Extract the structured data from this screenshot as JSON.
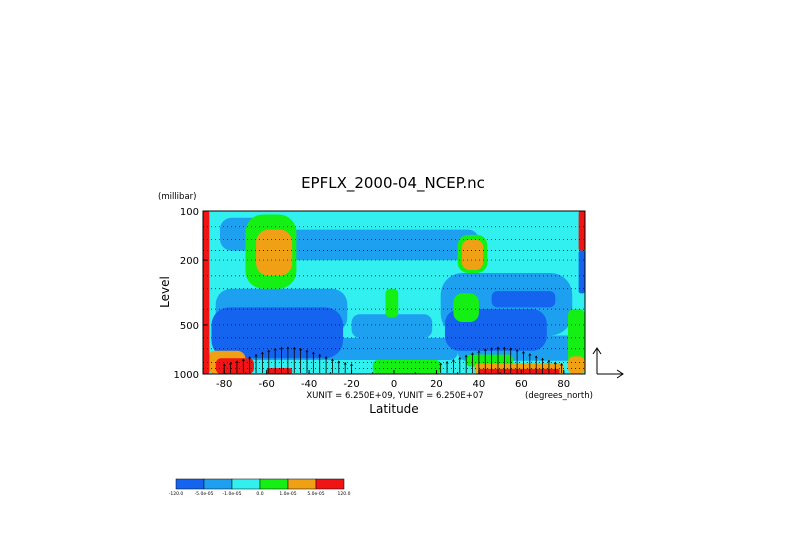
{
  "chart_data": {
    "type": "heatmap",
    "title": "EPFLX_2000-04_NCEP.nc",
    "xlabel": "Latitude",
    "ylabel": "Level",
    "x_units": "(degrees_north)",
    "y_units": "(millibar)",
    "unit_note": "XUNIT = 6.250E+09, YUNIT = 6.250E+07",
    "xlim": [
      -90,
      90
    ],
    "ylim": [
      1000,
      100
    ],
    "y_scale": "log",
    "x_ticks": [
      "-80",
      "-60",
      "-40",
      "-20",
      "0",
      "20",
      "40",
      "60",
      "80"
    ],
    "x_tick_values": [
      -80,
      -60,
      -40,
      -20,
      0,
      20,
      40,
      60,
      80
    ],
    "y_ticks": [
      "100",
      "200",
      "500",
      "1000"
    ],
    "y_tick_values": [
      100,
      200,
      500,
      1000
    ],
    "grid": "dotted horizontal lines",
    "colorbar": {
      "placement": "bottom-left",
      "colors": [
        "#1464f0",
        "#1ea0f0",
        "#32f0f0",
        "#14f014",
        "#f0a014",
        "#f01414"
      ],
      "labels": [
        "-120.0",
        "-5.0e-05",
        "-1.0e-05",
        "0.0",
        "1.0e-05",
        "5.0e-05",
        "120.0"
      ]
    },
    "regions": [
      {
        "class": 2,
        "x": [
          -90,
          90
        ],
        "y": [
          100,
          1000
        ]
      },
      {
        "class": 1,
        "x": [
          -82,
          -50
        ],
        "y": [
          110,
          175
        ]
      },
      {
        "class": 1,
        "x": [
          -52,
          40
        ],
        "y": [
          130,
          200
        ]
      },
      {
        "class": 1,
        "x": [
          -84,
          -22
        ],
        "y": [
          300,
          560
        ]
      },
      {
        "class": 1,
        "x": [
          -20,
          18
        ],
        "y": [
          430,
          600
        ]
      },
      {
        "class": 1,
        "x": [
          22,
          84
        ],
        "y": [
          240,
          580
        ]
      },
      {
        "class": 1,
        "x": [
          -82,
          30
        ],
        "y": [
          600,
          820
        ]
      },
      {
        "class": 1,
        "x": [
          30,
          88
        ],
        "y": [
          580,
          830
        ]
      },
      {
        "class": 0,
        "x": [
          -86,
          -24
        ],
        "y": [
          390,
          800
        ]
      },
      {
        "class": 0,
        "x": [
          24,
          72
        ],
        "y": [
          400,
          720
        ]
      },
      {
        "class": 0,
        "x": [
          46,
          76
        ],
        "y": [
          310,
          390
        ]
      },
      {
        "class": 3,
        "x": [
          -70,
          -46
        ],
        "y": [
          105,
          300
        ]
      },
      {
        "class": 3,
        "x": [
          -4,
          2
        ],
        "y": [
          300,
          450
        ]
      },
      {
        "class": 3,
        "x": [
          28,
          40
        ],
        "y": [
          320,
          480
        ]
      },
      {
        "class": 3,
        "x": [
          30,
          44
        ],
        "y": [
          140,
          240
        ]
      },
      {
        "class": 3,
        "x": [
          -10,
          22
        ],
        "y": [
          820,
          1000
        ]
      },
      {
        "class": 3,
        "x": [
          34,
          56
        ],
        "y": [
          760,
          900
        ]
      },
      {
        "class": 3,
        "x": [
          82,
          90
        ],
        "y": [
          400,
          900
        ]
      },
      {
        "class": 4,
        "x": [
          -65,
          -48
        ],
        "y": [
          130,
          250
        ]
      },
      {
        "class": 4,
        "x": [
          32,
          42
        ],
        "y": [
          150,
          230
        ]
      },
      {
        "class": 4,
        "x": [
          38,
          80
        ],
        "y": [
          860,
          1000
        ]
      },
      {
        "class": 4,
        "x": [
          -88,
          -70
        ],
        "y": [
          720,
          1000
        ]
      },
      {
        "class": 4,
        "x": [
          82,
          90
        ],
        "y": [
          780,
          1000
        ]
      },
      {
        "class": 5,
        "x": [
          -90,
          -87
        ],
        "y": [
          100,
          1000
        ]
      },
      {
        "class": 5,
        "x": [
          -84,
          -66
        ],
        "y": [
          800,
          1000
        ]
      },
      {
        "class": 5,
        "x": [
          -60,
          -48
        ],
        "y": [
          920,
          1000
        ]
      },
      {
        "class": 5,
        "x": [
          40,
          78
        ],
        "y": [
          930,
          1000
        ]
      },
      {
        "class": 5,
        "x": [
          87,
          90
        ],
        "y": [
          100,
          175
        ]
      },
      {
        "class": 0,
        "x": [
          87,
          90
        ],
        "y": [
          175,
          320
        ]
      }
    ]
  }
}
